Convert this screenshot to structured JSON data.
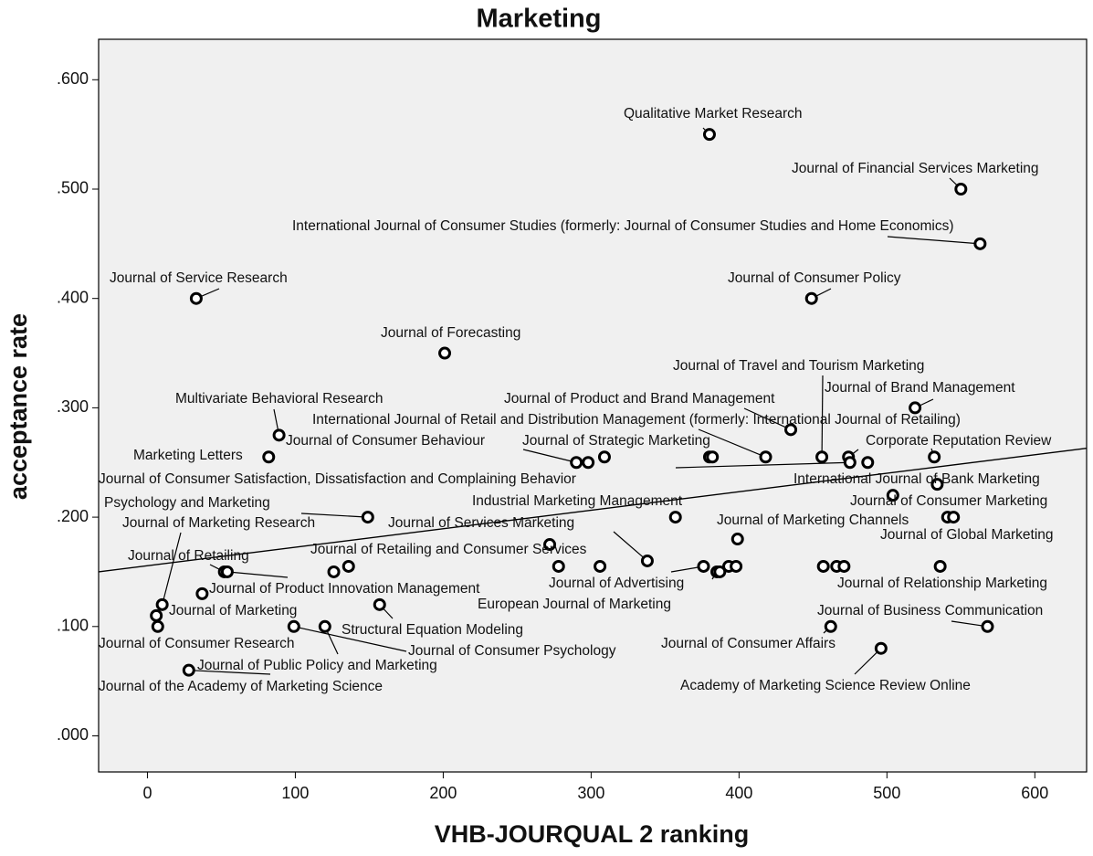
{
  "chart_data": {
    "type": "scatter",
    "title": "Marketing",
    "x_label": "VHB-JOURQUAL 2 ranking",
    "y_label": "acceptance rate",
    "xlim": [
      -33,
      635
    ],
    "ylim": [
      -0.033,
      0.637
    ],
    "xticks": [
      0,
      100,
      200,
      300,
      400,
      500,
      600
    ],
    "yticks": [
      {
        "value": 0,
        "label": ".000"
      },
      {
        "value": 0.1,
        "label": ".100"
      },
      {
        "value": 0.2,
        "label": ".200"
      },
      {
        "value": 0.3,
        "label": ".300"
      },
      {
        "value": 0.4,
        "label": ".400"
      },
      {
        "value": 0.5,
        "label": ".500"
      },
      {
        "value": 0.6,
        "label": ".600"
      }
    ],
    "x": [
      380,
      550,
      563,
      33,
      449,
      201,
      519,
      89,
      435,
      82,
      290,
      298,
      309,
      380,
      382,
      418,
      456,
      474,
      475,
      487,
      532,
      534,
      504,
      541,
      545,
      149,
      357,
      399,
      272,
      338,
      278,
      306,
      376,
      385,
      387,
      393,
      398,
      457,
      466,
      471,
      536,
      52,
      54,
      126,
      136,
      37,
      10,
      6,
      7,
      157,
      99,
      120,
      462,
      568,
      496,
      28
    ],
    "values": [
      0.55,
      0.5,
      0.45,
      0.4,
      0.4,
      0.35,
      0.3,
      0.275,
      0.28,
      0.255,
      0.25,
      0.25,
      0.255,
      0.255,
      0.255,
      0.255,
      0.255,
      0.255,
      0.25,
      0.25,
      0.255,
      0.23,
      0.22,
      0.2,
      0.2,
      0.2,
      0.2,
      0.18,
      0.175,
      0.16,
      0.155,
      0.155,
      0.155,
      0.15,
      0.15,
      0.155,
      0.155,
      0.155,
      0.155,
      0.155,
      0.155,
      0.15,
      0.15,
      0.15,
      0.155,
      0.13,
      0.12,
      0.11,
      0.1,
      0.12,
      0.1,
      0.1,
      0.1,
      0.1,
      0.08,
      0.06
    ],
    "point_labels": [
      "Qualitative Market Research",
      "Journal of Financial Services Marketing",
      "International Journal of Consumer Studies (formerly: Journal of Consumer Studies and Home Economics)",
      "Journal of Service Research",
      "Journal of Consumer Policy",
      "Journal of Forecasting",
      "Journal of Brand Management",
      "Multivariate Behavioral Research",
      "Journal of Product and Brand Management",
      "Marketing Letters",
      "Journal of Consumer Behaviour",
      null,
      "Journal of Strategic Marketing",
      null,
      null,
      "International Journal of Retail and Distribution Management (formerly: International Journal of Retailing)",
      "Journal of Travel and Tourism Marketing",
      null,
      "Journal of Consumer Satisfaction, Dissatisfaction and Complaining Behavior",
      null,
      "Corporate Reputation Review",
      "International Journal of Bank Marketing",
      "Journal of Consumer Marketing",
      null,
      "Journal of Global Marketing",
      "Psychology and Marketing",
      "Industrial Marketing Management",
      "Journal of Marketing Channels",
      null,
      "Journal of Services Marketing",
      null,
      null,
      "Journal of Advertising",
      "European Journal of Marketing",
      null,
      null,
      null,
      null,
      null,
      null,
      "Journal of Relationship Marketing",
      "Journal of Retailing",
      null,
      null,
      "Journal of Retailing and Consumer Services",
      "Journal of Product Innovation Management",
      "Journal of Marketing Research",
      "Journal of Marketing",
      "Journal of Consumer Research",
      "Structural Equation Modeling",
      "Journal of Consumer Psychology",
      "Journal of Public Policy and Marketing",
      "Journal of Consumer Affairs",
      "Journal of Business Communication",
      "Academy of Marketing Science Review Online",
      "Journal of the Academy of Marketing Science"
    ],
    "fit_line": {
      "x": [
        -33,
        635
      ],
      "y": [
        0.15,
        0.263
      ]
    },
    "color": "#000000"
  }
}
